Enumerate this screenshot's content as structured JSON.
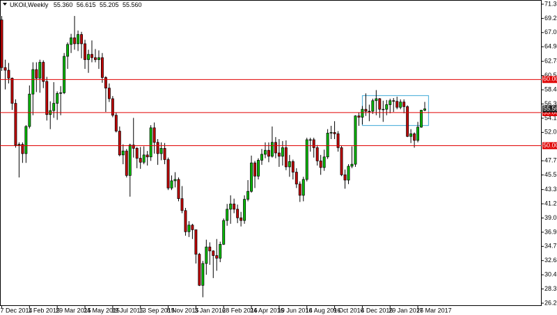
{
  "chart_data": {
    "type": "candlestick",
    "header": {
      "symbol": "UKOil,Weekly",
      "ohlc_labels": [
        "55.360",
        "56.615",
        "55.205",
        "55.560"
      ]
    },
    "up_color": "#00b800",
    "down_color": "#c00000",
    "categories": [
      "7 Dec 2014",
      null,
      null,
      null,
      null,
      null,
      null,
      null,
      "1 Feb 2015",
      null,
      null,
      null,
      null,
      null,
      null,
      null,
      "29 Mar 2015",
      null,
      null,
      null,
      null,
      null,
      null,
      null,
      "24 May 2015",
      null,
      null,
      null,
      null,
      null,
      null,
      null,
      "19 Jul 2015",
      null,
      null,
      null,
      null,
      null,
      null,
      null,
      "13 Sep 2015",
      null,
      null,
      null,
      null,
      null,
      null,
      null,
      "8 Nov 2015",
      null,
      null,
      null,
      null,
      null,
      null,
      null,
      "3 Jan 2016",
      null,
      null,
      null,
      null,
      null,
      null,
      null,
      "28 Feb 2016",
      null,
      null,
      null,
      null,
      null,
      null,
      null,
      "24 Apr 2016",
      null,
      null,
      null,
      null,
      null,
      null,
      null,
      "19 Jun 2016",
      null,
      null,
      null,
      null,
      null,
      null,
      null,
      "14 Aug 2016",
      null,
      null,
      null,
      null,
      null,
      null,
      null,
      "9 Oct 2016",
      null,
      null,
      null,
      null,
      null,
      null,
      null,
      "4 Dec 2016",
      null,
      null,
      null,
      null,
      null,
      null,
      null,
      "29 Jan 2017",
      null,
      null,
      null,
      null,
      null,
      null,
      null,
      "26 Mar 2017",
      null,
      null
    ],
    "open": [
      69.0,
      61.8,
      61.4,
      60.2,
      56.4,
      50.1,
      50.2,
      48.8,
      52.9,
      57.8,
      61.5,
      60.2,
      62.6,
      59.7,
      54.7,
      55.3,
      56.4,
      57.9,
      58.0,
      63.5,
      65.3,
      66.3,
      65.4,
      66.8,
      65.4,
      63.0,
      63.8,
      63.3,
      63.0,
      63.3,
      60.3,
      58.7,
      57.1,
      54.6,
      52.2,
      48.6,
      49.2,
      45.5,
      50.1,
      49.6,
      48.1,
      47.5,
      48.6,
      48.3,
      52.7,
      50.5,
      48.8,
      49.6,
      47.9,
      43.6,
      44.7,
      44.9,
      42.0,
      40.2,
      37.0,
      38.0,
      37.3,
      33.6,
      28.9,
      32.2,
      34.7,
      34.1,
      33.4,
      33.0,
      35.1,
      38.7,
      40.4,
      41.2,
      40.4,
      39.1,
      38.7,
      41.9,
      43.1,
      47.4,
      45.4,
      47.8,
      48.7,
      49.3,
      48.4,
      50.5,
      48.9,
      48.4,
      49.7,
      46.8,
      47.6,
      46.0,
      44.2,
      42.5,
      44.9,
      50.9,
      50.9,
      49.7,
      47.7,
      46.7,
      48.3,
      51.9,
      52.0,
      51.8,
      49.7,
      45.6,
      44.8,
      46.9,
      47.2,
      54.5,
      54.3,
      55.5,
      55.2,
      55.2,
      56.8,
      57.1,
      55.5,
      55.5,
      56.2,
      56.8,
      56.7,
      55.8,
      56.6,
      55.9,
      51.4,
      51.8,
      50.8,
      52.8,
      55.36
    ],
    "high": [
      69.6,
      63.0,
      62.5,
      60.3,
      57.0,
      50.5,
      50.5,
      53.1,
      59.1,
      62.6,
      62.6,
      63.0,
      62.9,
      60.4,
      56.7,
      59.6,
      58.2,
      59.0,
      64.0,
      65.6,
      66.9,
      69.6,
      67.4,
      67.2,
      66.0,
      64.5,
      65.9,
      64.6,
      64.4,
      64.0,
      60.5,
      59.4,
      57.5,
      55.0,
      52.9,
      50.2,
      49.5,
      50.3,
      54.2,
      49.8,
      49.8,
      49.9,
      49.2,
      53.1,
      53.5,
      51.0,
      50.5,
      50.4,
      48.2,
      45.5,
      46.0,
      45.2,
      43.9,
      40.6,
      38.6,
      38.2,
      37.3,
      33.8,
      32.6,
      35.8,
      35.4,
      34.2,
      35.9,
      35.5,
      39.0,
      41.2,
      42.5,
      42.0,
      41.1,
      40.0,
      42.5,
      44.8,
      48.5,
      47.7,
      48.1,
      49.5,
      50.5,
      50.5,
      52.9,
      51.3,
      51.0,
      50.7,
      50.8,
      48.6,
      47.9,
      46.6,
      44.6,
      45.3,
      51.2,
      51.2,
      51.2,
      50.1,
      48.6,
      49.4,
      52.5,
      53.0,
      53.7,
      52.2,
      50.0,
      46.4,
      47.2,
      49.9,
      54.6,
      55.0,
      56.0,
      57.9,
      56.2,
      57.1,
      58.4,
      57.2,
      56.8,
      56.9,
      57.1,
      57.2,
      57.4,
      57.0,
      57.0,
      56.1,
      52.5,
      52.0,
      53.6,
      55.4,
      56.615
    ],
    "low": [
      61.3,
      58.5,
      59.4,
      55.4,
      49.7,
      45.2,
      47.4,
      47.4,
      52.6,
      54.6,
      58.1,
      58.0,
      58.7,
      53.8,
      52.5,
      54.2,
      53.9,
      54.6,
      57.8,
      61.6,
      64.0,
      64.5,
      64.3,
      63.2,
      61.6,
      61.0,
      62.6,
      62.6,
      61.6,
      59.5,
      55.1,
      56.6,
      54.3,
      52.0,
      48.4,
      47.2,
      45.2,
      42.3,
      48.2,
      46.6,
      46.5,
      47.2,
      47.0,
      47.7,
      48.8,
      47.1,
      47.8,
      47.2,
      43.3,
      43.3,
      43.7,
      41.6,
      39.8,
      36.4,
      36.2,
      35.9,
      32.2,
      28.8,
      27.1,
      30.5,
      32.0,
      30.0,
      31.1,
      32.4,
      35.0,
      37.9,
      38.2,
      39.8,
      38.3,
      37.8,
      38.2,
      41.6,
      42.9,
      43.6,
      44.9,
      47.1,
      48.1,
      47.5,
      48.2,
      48.1,
      46.8,
      47.0,
      46.3,
      45.3,
      44.9,
      43.6,
      41.5,
      41.6,
      44.6,
      49.1,
      48.2,
      47.0,
      45.6,
      46.2,
      48.0,
      51.0,
      51.0,
      49.1,
      45.4,
      43.5,
      44.2,
      46.6,
      46.8,
      53.0,
      53.2,
      54.5,
      53.7,
      54.8,
      54.6,
      54.2,
      53.6,
      54.6,
      54.9,
      55.1,
      55.5,
      55.5,
      54.9,
      51.3,
      50.4,
      49.7,
      50.5,
      52.7,
      55.205
    ],
    "close": [
      61.8,
      61.4,
      60.2,
      56.4,
      50.1,
      50.2,
      48.8,
      52.9,
      57.8,
      61.5,
      60.2,
      62.6,
      59.7,
      54.7,
      55.3,
      56.4,
      57.9,
      58.0,
      63.5,
      65.3,
      66.3,
      65.4,
      66.8,
      65.4,
      63.0,
      63.8,
      63.3,
      63.0,
      63.3,
      60.3,
      58.7,
      57.1,
      54.6,
      52.2,
      48.6,
      49.2,
      45.5,
      50.1,
      49.6,
      48.1,
      47.5,
      48.6,
      48.3,
      52.7,
      50.5,
      48.8,
      49.6,
      47.9,
      43.6,
      44.7,
      44.9,
      42.0,
      40.2,
      37.0,
      38.0,
      37.3,
      33.6,
      28.9,
      32.2,
      34.7,
      34.1,
      33.4,
      33.0,
      35.1,
      38.7,
      40.4,
      41.2,
      40.4,
      39.1,
      38.7,
      41.9,
      43.1,
      47.4,
      45.4,
      47.8,
      48.7,
      49.3,
      48.4,
      50.5,
      48.9,
      48.4,
      49.7,
      46.8,
      47.6,
      46.0,
      44.2,
      42.5,
      44.9,
      50.9,
      50.9,
      49.7,
      47.7,
      46.7,
      48.3,
      51.9,
      52.0,
      51.8,
      49.7,
      45.6,
      44.8,
      46.9,
      47.2,
      54.5,
      54.3,
      55.5,
      55.2,
      55.2,
      56.8,
      57.1,
      55.5,
      55.5,
      56.2,
      56.8,
      56.7,
      55.8,
      56.6,
      55.9,
      51.4,
      51.8,
      50.8,
      52.8,
      55.36,
      55.56
    ],
    "last_price_label": "55.560",
    "hlines": [
      {
        "value": 60,
        "label": "60.000"
      },
      {
        "value": 55,
        "label": "55.000"
      },
      {
        "value": 50,
        "label": "50.000"
      }
    ],
    "hline_color": "#e00000",
    "ylim": [
      25.785,
      71.905
    ],
    "yticks": [
      {
        "value": 71.38,
        "label": "71.380"
      },
      {
        "value": 69.235,
        "label": "69.235"
      },
      {
        "value": 67.09,
        "label": "67.090"
      },
      {
        "value": 64.945,
        "label": "64.945"
      },
      {
        "value": 62.745,
        "label": "62.745"
      },
      {
        "value": 60.59,
        "label": "60.590"
      },
      {
        "value": 58.445,
        "label": "58.445"
      },
      {
        "value": 56.3,
        "label": "56.300"
      },
      {
        "value": 54.155,
        "label": "54.155"
      },
      {
        "value": 52.01,
        "label": "52.010"
      },
      {
        "value": 47.72,
        "label": "47.720"
      },
      {
        "value": 45.575,
        "label": "45.575"
      },
      {
        "value": 43.365,
        "label": "43.365"
      },
      {
        "value": 41.22,
        "label": "41.220"
      },
      {
        "value": 39.075,
        "label": "39.075"
      },
      {
        "value": 36.93,
        "label": "36.930"
      },
      {
        "value": 34.785,
        "label": "34.785"
      },
      {
        "value": 32.64,
        "label": "32.640"
      },
      {
        "value": 30.495,
        "label": "30.495"
      },
      {
        "value": 28.35,
        "label": "28.350"
      },
      {
        "value": 26.205,
        "label": "26.205"
      }
    ]
  }
}
